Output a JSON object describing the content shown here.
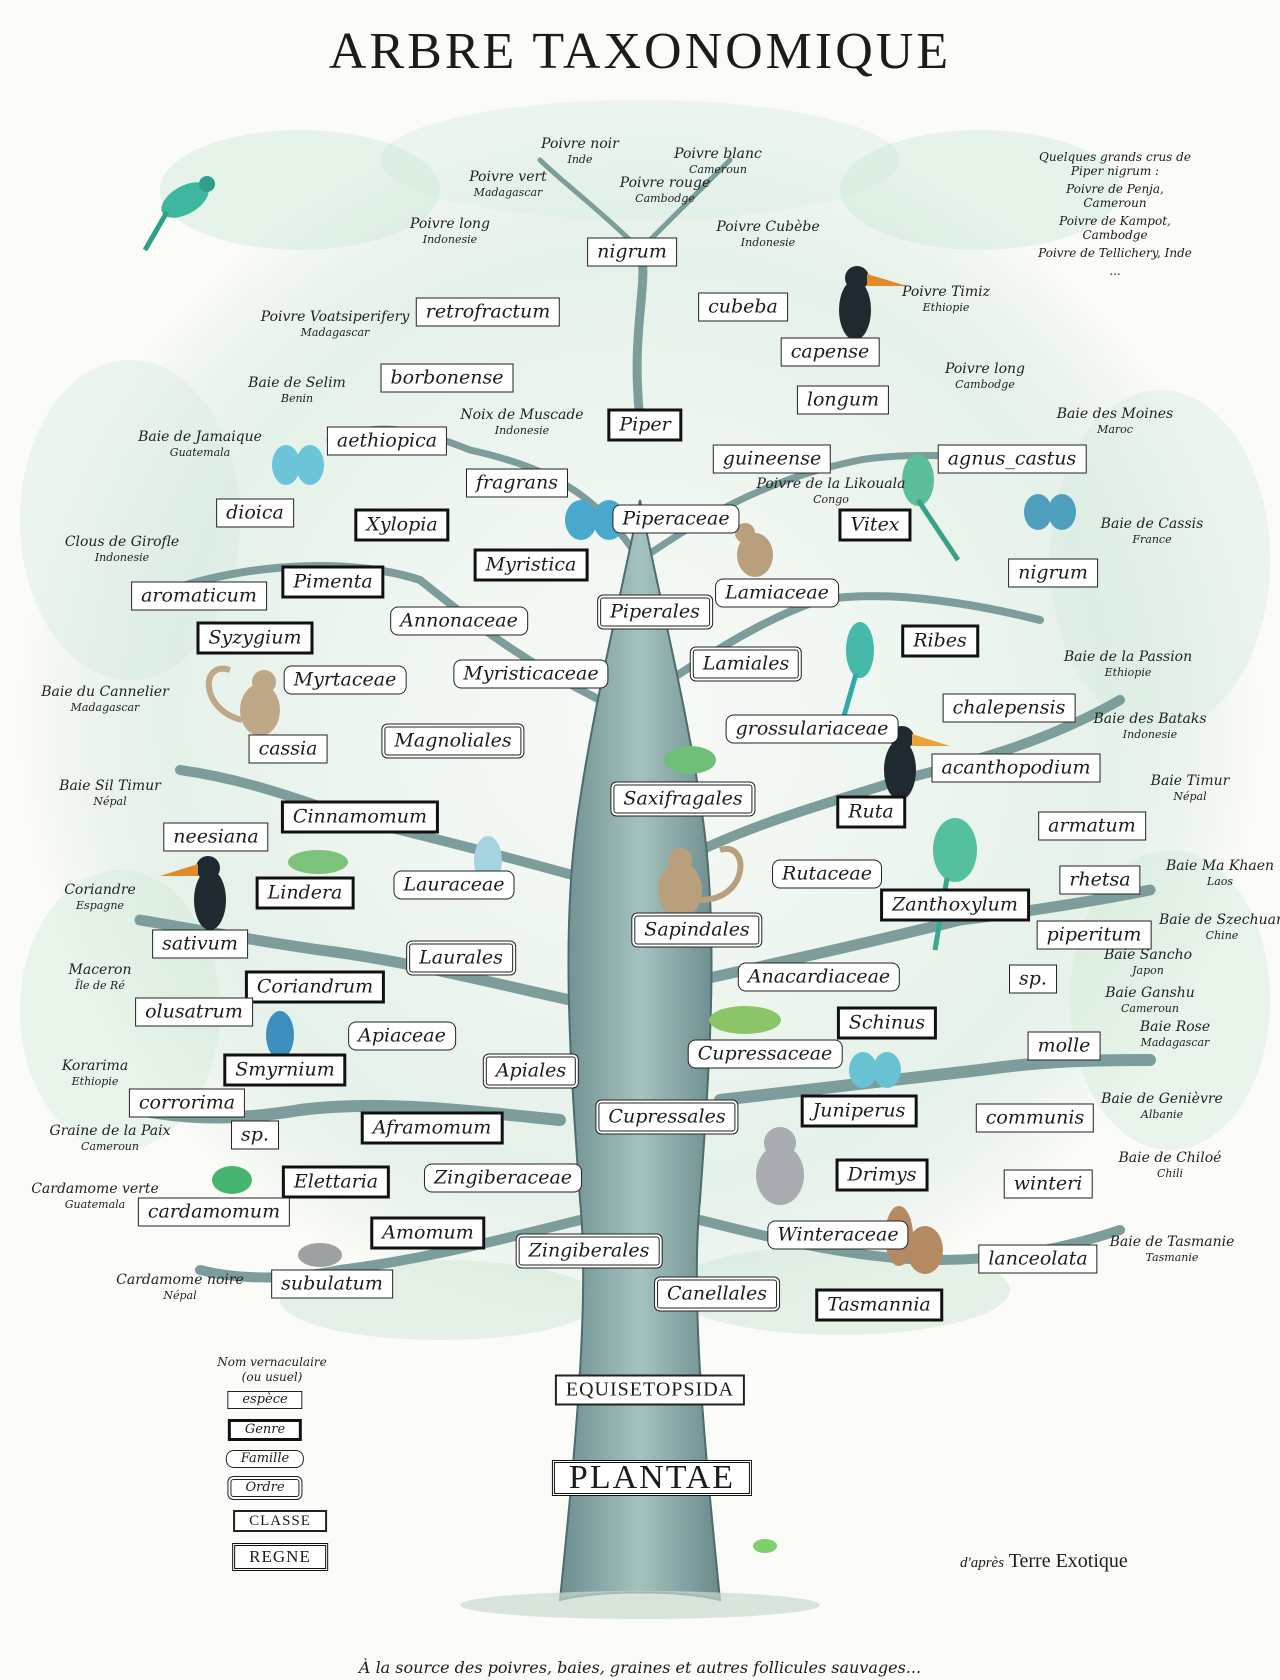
{
  "title": "ARBRE TAXONOMIQUE",
  "labels": {
    "regne": "PLANTAE",
    "classe": "EQUISETOPSIDA",
    "ordre": {
      "piperales": "Piperales",
      "magnoliales": "Magnoliales",
      "laurales": "Laurales",
      "apiales": "Apiales",
      "zingiberales": "Zingiberales",
      "lamiales": "Lamiales",
      "saxifragales": "Saxifragales",
      "sapindales": "Sapindales",
      "cupressales": "Cupressales",
      "canellales": "Canellales",
      "myrtales": "Myrtaceae"
    },
    "famille": {
      "piperaceae": "Piperaceae",
      "annonaceae": "Annonaceae",
      "myristicaceae": "Myristicaceae",
      "myrtaceae": "Myrtaceae",
      "lauraceae": "Lauraceae",
      "apiaceae": "Apiaceae",
      "zingiberaceae": "Zingiberaceae",
      "lamiaceae": "Lamiaceae",
      "grossulariaceae": "grossulariaceae",
      "rutaceae": "Rutaceae",
      "anacardiaceae": "Anacardiaceae",
      "cupressaceae": "Cupressaceae",
      "winteraceae": "Winteraceae"
    },
    "genre": {
      "piper": "Piper",
      "xylopia": "Xylopia",
      "myristica": "Myristica",
      "pimenta": "Pimenta",
      "syzygium": "Syzygium",
      "cinnamomum": "Cinnamomum",
      "lindera": "Lindera",
      "coriandrum": "Coriandrum",
      "smyrnium": "Smyrnium",
      "aframomum": "Aframomum",
      "elettaria": "Elettaria",
      "amomum": "Amomum",
      "vitex": "Vitex",
      "ribes": "Ribes",
      "ruta": "Ruta",
      "zanthoxylum": "Zanthoxylum",
      "schinus": "Schinus",
      "juniperus": "Juniperus",
      "drimys": "Drimys",
      "tasmannia": "Tasmannia"
    },
    "espece": {
      "nigrum": "nigrum",
      "retrofractum": "retrofractum",
      "cubeba": "cubeba",
      "capense": "capense",
      "borbonense": "borbonense",
      "longum": "longum",
      "aethiopica": "aethiopica",
      "fragrans": "fragrans",
      "guineense": "guineense",
      "dioica": "dioica",
      "agnus_castus": "agnus_castus",
      "nigrum2": "nigrum",
      "aromaticum": "aromaticum",
      "cassia": "cassia",
      "chalepensis": "chalepensis",
      "acanthopodium": "acanthopodium",
      "neesiana": "neesiana",
      "armatum": "armatum",
      "rhetsa": "rhetsa",
      "sativum": "sativum",
      "piperitum": "piperitum",
      "sp1": "sp.",
      "olusatrum": "olusatrum",
      "molle": "molle",
      "corrorima": "corrorima",
      "communis": "communis",
      "sp2": "sp.",
      "cardamomum": "cardamomum",
      "winteri": "winteri",
      "subulatum": "subulatum",
      "lanceolata": "lanceolata"
    }
  },
  "common": {
    "poivre_noir": [
      "Poivre noir",
      "Inde"
    ],
    "poivre_blanc": [
      "Poivre blanc",
      "Cameroun"
    ],
    "poivre_vert": [
      "Poivre vert",
      "Madagascar"
    ],
    "poivre_rouge": [
      "Poivre rouge",
      "Cambodge"
    ],
    "poivre_long_ind": [
      "Poivre long",
      "Indonesie"
    ],
    "poivre_cubebe": [
      "Poivre Cubèbe",
      "Indonesie"
    ],
    "poivre_timiz": [
      "Poivre Timiz",
      "Ethiopie"
    ],
    "voatsiperifery": [
      "Poivre Voatsiperifery",
      "Madagascar"
    ],
    "poivre_long_camb": [
      "Poivre long",
      "Cambodge"
    ],
    "selim": [
      "Baie de Selim",
      "Benin"
    ],
    "muscade": [
      "Noix de Muscade",
      "Indonesie"
    ],
    "moines": [
      "Baie des Moines",
      "Maroc"
    ],
    "jamaique": [
      "Baie de Jamaique",
      "Guatemala"
    ],
    "likouala": [
      "Poivre de la Likouala",
      "Congo"
    ],
    "cassis": [
      "Baie de Cassis",
      "France"
    ],
    "girofle": [
      "Clous de Girofle",
      "Indonesie"
    ],
    "passion": [
      "Baie de la Passion",
      "Ethiopie"
    ],
    "cannelier": [
      "Baie du Cannelier",
      "Madagascar"
    ],
    "bataks": [
      "Baie des Bataks",
      "Indonesie"
    ],
    "siltimur": [
      "Baie Sil Timur",
      "Népal"
    ],
    "timur": [
      "Baie Timur",
      "Népal"
    ],
    "makhaen": [
      "Baie Ma Khaen",
      "Laos"
    ],
    "coriandre": [
      "Coriandre",
      "Espagne"
    ],
    "szechuan": [
      "Baie de Szechuan",
      "Chine"
    ],
    "sancho": [
      "Baie Sancho",
      "Japon"
    ],
    "maceron": [
      "Maceron",
      "Île de Ré"
    ],
    "ganshu": [
      "Baie Ganshu",
      "Cameroun"
    ],
    "rose": [
      "Baie Rose",
      "Madagascar"
    ],
    "korarima": [
      "Korarima",
      "Ethiopie"
    ],
    "genievre": [
      "Baie de Genièvre",
      "Albanie"
    ],
    "paradis": [
      "Graine de la Paix",
      "Cameroun"
    ],
    "chiloe": [
      "Baie de Chiloé",
      "Chili"
    ],
    "cardamome_verte": [
      "Cardamome verte",
      "Guatemala"
    ],
    "tasmanie": [
      "Baie de Tasmanie",
      "Tasmanie"
    ],
    "cardamome_noire": [
      "Cardamome noire",
      "Népal"
    ]
  },
  "grands_crus": {
    "heading": "Quelques grands crus de Piper nigrum :",
    "items": [
      "Poivre de Penja, Cameroun",
      "Poivre de Kampot, Cambodge",
      "Poivre de Tellichery, Inde",
      "..."
    ]
  },
  "legend": {
    "heading": "Nom vernaculaire (ou usuel)",
    "espece": "espèce",
    "genre": "Genre",
    "famille": "Famille",
    "ordre": "Ordre",
    "classe": "CLASSE",
    "regne": "REGNE"
  },
  "credit": {
    "prefix": "d'après",
    "name": "Terre Exotique"
  },
  "footer": "À la source des poivres, baies, graines et autres follicules sauvages...",
  "colors": {
    "trunk": "#8fb0ae",
    "trunk_dark": "#5f7f80",
    "foliage": "#cfe6d6",
    "foliage2": "#9fd2b8",
    "ink": "#1c1c1c"
  }
}
